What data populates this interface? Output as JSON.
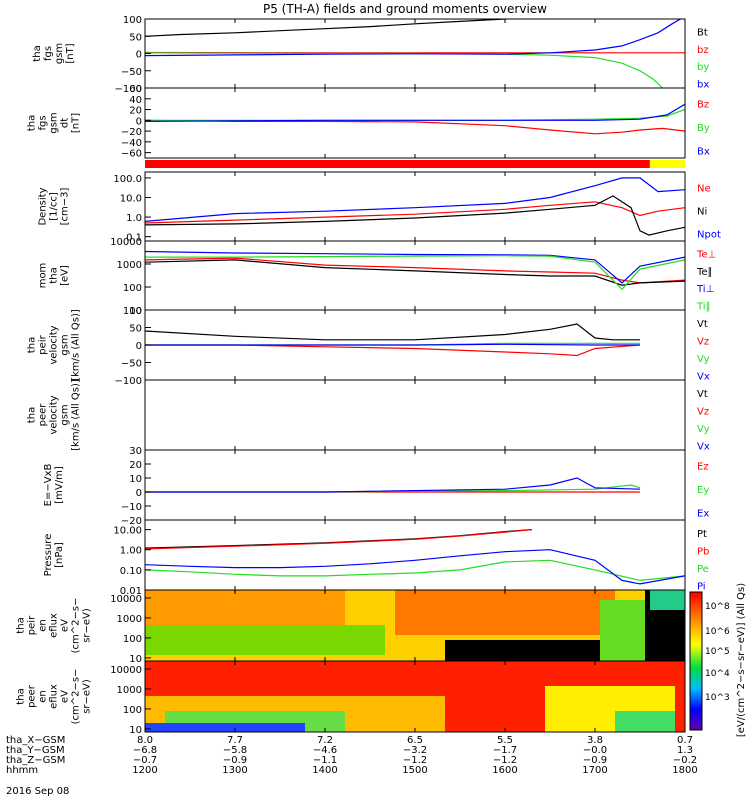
{
  "title": "P5 (TH-A) fields and ground moments overview",
  "date_label": "2016 Sep 08",
  "colors": {
    "black": "#000000",
    "red": "#ff0000",
    "green": "#22dd22",
    "blue": "#0000ff",
    "flag_red": "#ff0000",
    "flag_yellow": "#ffff00"
  },
  "chart_data": [
    {
      "id": "fgs_gsm",
      "type": "line",
      "ylabel": [
        "tha",
        "fgs",
        "gsm",
        "[nT]"
      ],
      "yticks": [
        {
          "v": 100,
          "t": "100"
        },
        {
          "v": 50,
          "t": "50"
        },
        {
          "v": 0,
          "t": "0"
        },
        {
          "v": -50,
          "t": "−50"
        },
        {
          "v": -100,
          "t": "−100"
        }
      ],
      "ylim": [
        -100,
        100
      ],
      "scale": "linear",
      "legend": [
        "Bt",
        "bz",
        "by",
        "bx"
      ],
      "series": [
        {
          "name": "Bt",
          "color": "black",
          "x": [
            1200,
            1240,
            1300,
            1350,
            1400,
            1450,
            1500,
            1550,
            1600,
            1625
          ],
          "y": [
            50,
            55,
            60,
            66,
            72,
            78,
            86,
            93,
            100,
            104
          ]
        },
        {
          "name": "bz",
          "color": "red",
          "x": [
            1200,
            1400,
            1600,
            1800
          ],
          "y": [
            3,
            2,
            2,
            2
          ]
        },
        {
          "name": "by",
          "color": "green",
          "x": [
            1200,
            1300,
            1400,
            1500,
            1600,
            1650,
            1700,
            1730,
            1750,
            1765,
            1775
          ],
          "y": [
            2,
            1,
            0,
            0,
            -2,
            -5,
            -12,
            -28,
            -50,
            -75,
            -100
          ]
        },
        {
          "name": "bx",
          "color": "blue",
          "x": [
            1200,
            1300,
            1400,
            1500,
            1600,
            1650,
            1700,
            1730,
            1750,
            1770,
            1785,
            1795
          ],
          "y": [
            -6,
            -4,
            -2,
            -1,
            -2,
            2,
            10,
            22,
            40,
            60,
            85,
            100
          ]
        }
      ]
    },
    {
      "id": "fgs_gsm_detrended",
      "type": "line",
      "ylabel": [
        "tha",
        "fgs",
        "gsm",
        "dt",
        "[nT]"
      ],
      "yticks": [
        {
          "v": 60,
          "t": "60"
        },
        {
          "v": 40,
          "t": "40"
        },
        {
          "v": 20,
          "t": "20"
        },
        {
          "v": 0,
          "t": "0"
        },
        {
          "v": -20,
          "t": "−20"
        },
        {
          "v": -40,
          "t": "−40"
        },
        {
          "v": -60,
          "t": "−60"
        }
      ],
      "ylim": [
        -70,
        60
      ],
      "scale": "linear",
      "legend": [
        "Bz",
        "By",
        "Bx"
      ],
      "series": [
        {
          "name": "Bz",
          "color": "red",
          "x": [
            1200,
            1300,
            1400,
            1500,
            1600,
            1650,
            1700,
            1730,
            1750,
            1775,
            1800
          ],
          "y": [
            0,
            -2,
            -2,
            -3,
            -10,
            -18,
            -25,
            -22,
            -18,
            -15,
            -20
          ]
        },
        {
          "name": "By",
          "color": "green",
          "x": [
            1200,
            1300,
            1400,
            1500,
            1600,
            1700,
            1750,
            1780,
            1800
          ],
          "y": [
            0,
            0,
            0,
            0,
            0,
            2,
            4,
            8,
            20
          ]
        },
        {
          "name": "Bx",
          "color": "blue",
          "x": [
            1200,
            1300,
            1400,
            1500,
            1600,
            1700,
            1750,
            1780,
            1800
          ],
          "y": [
            -2,
            -1,
            0,
            0,
            0,
            0,
            2,
            10,
            30
          ]
        }
      ]
    },
    {
      "id": "density",
      "type": "line",
      "ylabel": [
        "Density",
        "[1/cc]",
        "[cm−3]"
      ],
      "yticks": [
        {
          "v": 100,
          "t": "100.0"
        },
        {
          "v": 10,
          "t": "10.0"
        },
        {
          "v": 1,
          "t": "1.0"
        },
        {
          "v": 0.1,
          "t": "0.1"
        }
      ],
      "ylim": [
        0.06,
        200
      ],
      "scale": "log",
      "legend": [
        "Ne",
        "Ni",
        "Npot"
      ],
      "series": [
        {
          "name": "Ne",
          "color": "red",
          "x": [
            1200,
            1300,
            1400,
            1500,
            1600,
            1650,
            1700,
            1730,
            1750,
            1770,
            1800
          ],
          "y": [
            0.5,
            0.7,
            1.0,
            1.4,
            2.5,
            4,
            6,
            3,
            1.2,
            2,
            3
          ]
        },
        {
          "name": "Ni",
          "color": "black",
          "x": [
            1200,
            1300,
            1400,
            1500,
            1600,
            1650,
            1700,
            1720,
            1740,
            1750,
            1760,
            1780,
            1800
          ],
          "y": [
            0.4,
            0.45,
            0.6,
            0.9,
            1.6,
            2.5,
            4,
            12,
            3,
            0.2,
            0.12,
            0.2,
            0.3
          ]
        },
        {
          "name": "Npot",
          "color": "blue",
          "x": [
            1200,
            1300,
            1400,
            1500,
            1600,
            1650,
            1700,
            1730,
            1750,
            1770,
            1800
          ],
          "y": [
            0.6,
            1.5,
            2,
            3,
            5,
            10,
            40,
            100,
            100,
            20,
            25
          ]
        }
      ]
    },
    {
      "id": "temperature",
      "type": "line",
      "ylabel": [
        "mom",
        "tha",
        "[eV]"
      ],
      "yticks": [
        {
          "v": 10000,
          "t": "10000"
        },
        {
          "v": 1000,
          "t": "1000"
        },
        {
          "v": 100,
          "t": "100"
        },
        {
          "v": 10,
          "t": "10"
        }
      ],
      "ylim": [
        10,
        10000
      ],
      "scale": "log",
      "legend": [
        "Te⊥",
        "Te∥",
        "Ti⊥",
        "Ti∥"
      ],
      "series": [
        {
          "name": "Te⊥",
          "color": "red",
          "x": [
            1200,
            1300,
            1400,
            1500,
            1600,
            1650,
            1700,
            1730,
            1750,
            1800
          ],
          "y": [
            1500,
            1800,
            900,
            700,
            500,
            450,
            400,
            200,
            150,
            200
          ]
        },
        {
          "name": "Te∥",
          "color": "black",
          "x": [
            1200,
            1300,
            1400,
            1500,
            1600,
            1650,
            1700,
            1730,
            1750,
            1800
          ],
          "y": [
            1200,
            1500,
            700,
            500,
            350,
            300,
            300,
            120,
            150,
            180
          ]
        },
        {
          "name": "Ti⊥",
          "color": "blue",
          "x": [
            1200,
            1300,
            1400,
            1500,
            1600,
            1650,
            1700,
            1730,
            1750,
            1800
          ],
          "y": [
            3500,
            3000,
            2800,
            2600,
            2500,
            2400,
            1500,
            150,
            800,
            2000
          ]
        },
        {
          "name": "Ti∥",
          "color": "green",
          "x": [
            1200,
            1300,
            1400,
            1500,
            1600,
            1650,
            1700,
            1730,
            1750,
            1800
          ],
          "y": [
            2000,
            2000,
            2100,
            2200,
            2300,
            2200,
            1200,
            80,
            600,
            1500
          ]
        }
      ]
    },
    {
      "id": "peir_velocity",
      "type": "line",
      "ylabel": [
        "tha",
        "peir",
        "velocity",
        "gsm",
        "[km/s (All Qs)]"
      ],
      "yticks": [
        {
          "v": 100,
          "t": "100"
        },
        {
          "v": 50,
          "t": "50"
        },
        {
          "v": 0,
          "t": "0"
        },
        {
          "v": -50,
          "t": "−50"
        },
        {
          "v": -100,
          "t": "−100"
        }
      ],
      "ylim": [
        -100,
        100
      ],
      "scale": "linear",
      "legend": [
        "Vt",
        "Vz",
        "Vy",
        "Vx"
      ],
      "series": [
        {
          "name": "Vt",
          "color": "black",
          "x": [
            1200,
            1300,
            1400,
            1500,
            1600,
            1650,
            1680,
            1700,
            1720,
            1750
          ],
          "y": [
            40,
            25,
            15,
            15,
            30,
            45,
            60,
            20,
            15,
            15
          ]
        },
        {
          "name": "Vz",
          "color": "red",
          "x": [
            1200,
            1300,
            1400,
            1500,
            1600,
            1650,
            1680,
            1700,
            1750
          ],
          "y": [
            0,
            0,
            -5,
            -10,
            -20,
            -25,
            -30,
            -10,
            0
          ]
        },
        {
          "name": "Vy",
          "color": "green",
          "x": [
            1200,
            1300,
            1400,
            1500,
            1600,
            1700,
            1750
          ],
          "y": [
            0,
            0,
            0,
            0,
            5,
            5,
            5
          ]
        },
        {
          "name": "Vx",
          "color": "blue",
          "x": [
            1200,
            1300,
            1400,
            1500,
            1600,
            1700,
            1750
          ],
          "y": [
            0,
            0,
            0,
            0,
            2,
            0,
            0
          ]
        }
      ]
    },
    {
      "id": "peer_velocity",
      "type": "line",
      "ylabel": [
        "tha",
        "peer",
        "velocity",
        "gsm",
        "[km/s (All Qs)]"
      ],
      "yticks": [],
      "ylim": [
        -100,
        100
      ],
      "scale": "linear",
      "legend": [
        "Vt",
        "Vz",
        "Vy",
        "Vx"
      ],
      "series": []
    },
    {
      "id": "efield",
      "type": "line",
      "ylabel": [
        "E=−VxB",
        "[mV/m]"
      ],
      "yticks": [
        {
          "v": 30,
          "t": "30"
        },
        {
          "v": 20,
          "t": "20"
        },
        {
          "v": 10,
          "t": "10"
        },
        {
          "v": 0,
          "t": "0"
        },
        {
          "v": -10,
          "t": "−10"
        },
        {
          "v": -20,
          "t": "−20"
        }
      ],
      "ylim": [
        -20,
        30
      ],
      "scale": "linear",
      "legend": [
        "Ez",
        "Ey",
        "Ex"
      ],
      "series": [
        {
          "name": "Ez",
          "color": "red",
          "x": [
            1200,
            1400,
            1600,
            1750
          ],
          "y": [
            0,
            0,
            0,
            0
          ]
        },
        {
          "name": "Ey",
          "color": "green",
          "x": [
            1200,
            1400,
            1600,
            1700,
            1740,
            1750
          ],
          "y": [
            0,
            0,
            1,
            2,
            5,
            3
          ]
        },
        {
          "name": "Ex",
          "color": "blue",
          "x": [
            1200,
            1400,
            1600,
            1650,
            1680,
            1700,
            1750
          ],
          "y": [
            0,
            0,
            2,
            5,
            10,
            3,
            2
          ]
        }
      ]
    },
    {
      "id": "pressure",
      "type": "line",
      "ylabel": [
        "Pressure",
        "[nPa]"
      ],
      "yticks": [
        {
          "v": 10,
          "t": "10.00"
        },
        {
          "v": 1,
          "t": "1.00"
        },
        {
          "v": 0.1,
          "t": "0.10"
        },
        {
          "v": 0.01,
          "t": "0.01"
        }
      ],
      "ylim": [
        0.01,
        30
      ],
      "scale": "log",
      "legend": [
        "Pt",
        "Pb",
        "Pe",
        "Pi"
      ],
      "series": [
        {
          "name": "Pt",
          "color": "black",
          "x": [
            1200,
            1300,
            1400,
            1500,
            1550,
            1600,
            1630
          ],
          "y": [
            1.2,
            1.6,
            2.2,
            3.5,
            5,
            8,
            10
          ]
        },
        {
          "name": "Pb",
          "color": "red",
          "x": [
            1200,
            1300,
            1400,
            1500,
            1550,
            1600,
            1630
          ],
          "y": [
            1.1,
            1.5,
            2.1,
            3.3,
            4.8,
            7.5,
            10
          ]
        },
        {
          "name": "Pe",
          "color": "green",
          "x": [
            1200,
            1250,
            1300,
            1350,
            1400,
            1450,
            1500,
            1550,
            1600,
            1650,
            1700,
            1750,
            1800
          ],
          "y": [
            0.1,
            0.08,
            0.06,
            0.05,
            0.05,
            0.06,
            0.07,
            0.1,
            0.25,
            0.3,
            0.1,
            0.03,
            0.05
          ]
        },
        {
          "name": "Pi",
          "color": "blue",
          "x": [
            1200,
            1250,
            1300,
            1350,
            1400,
            1450,
            1500,
            1550,
            1600,
            1650,
            1700,
            1730,
            1750,
            1800
          ],
          "y": [
            0.18,
            0.15,
            0.13,
            0.13,
            0.15,
            0.2,
            0.3,
            0.5,
            0.8,
            1.0,
            0.3,
            0.03,
            0.02,
            0.05
          ]
        }
      ]
    },
    {
      "id": "peir_eflux",
      "type": "heatmap",
      "ylabel": [
        "tha",
        "peir",
        "en",
        "eflux",
        "eV",
        "(cm^2−s−",
        "sr−eV)"
      ],
      "yticks": [
        {
          "v": 10000,
          "t": "10000"
        },
        {
          "v": 1000,
          "t": "1000"
        },
        {
          "v": 100,
          "t": "100"
        },
        {
          "v": 10,
          "t": "10"
        }
      ],
      "ylim": [
        7,
        25000
      ],
      "scale": "log"
    },
    {
      "id": "peer_eflux",
      "type": "heatmap",
      "ylabel": [
        "tha",
        "peer",
        "en",
        "eflux",
        "eV",
        "(cm^2−s−",
        "sr−eV)"
      ],
      "yticks": [
        {
          "v": 10000,
          "t": "10000"
        },
        {
          "v": 1000,
          "t": "1000"
        },
        {
          "v": 100,
          "t": "100"
        },
        {
          "v": 10,
          "t": "10"
        }
      ],
      "ylim": [
        7,
        25000
      ],
      "scale": "log"
    }
  ],
  "colorbar": {
    "ticks": [
      "10^8",
      "10^6",
      "10^5",
      "10^4",
      "10^3"
    ],
    "label": "[eV/(cm^2−s−sr−eV)] (All Qs)"
  },
  "x_axis": {
    "xlim": [
      1200,
      1800
    ],
    "row_labels": [
      "tha_X−GSM",
      "tha_Y−GSM",
      "tha_Z−GSM",
      "hhmm"
    ],
    "tick_x": [
      1200,
      1300,
      1400,
      1500,
      1600,
      1700,
      1800
    ],
    "rows": [
      [
        "8.0",
        "7.7",
        "7.2",
        "6.5",
        "5.5",
        "3.8",
        "0.7"
      ],
      [
        "−6.8",
        "−5.8",
        "−4.6",
        "−3.2",
        "−1.7",
        "−0.0",
        "1.3"
      ],
      [
        "−0.7",
        "−0.9",
        "−1.1",
        "−1.2",
        "−1.2",
        "−0.9",
        "−0.2"
      ],
      [
        "1200",
        "1300",
        "1400",
        "1500",
        "1600",
        "1700",
        "1800"
      ]
    ]
  }
}
